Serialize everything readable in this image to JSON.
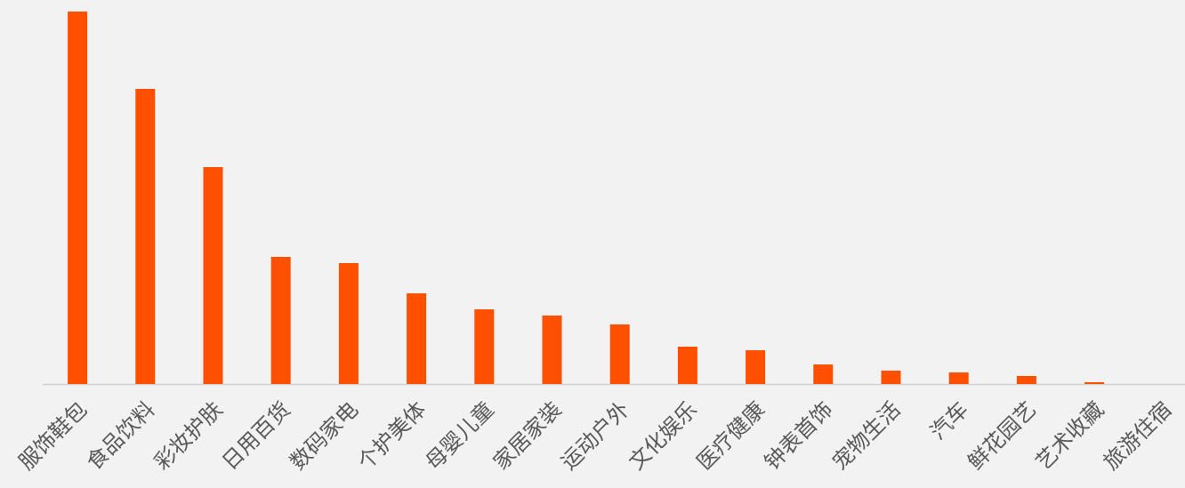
{
  "chart_data": {
    "type": "bar",
    "categories": [
      "服饰鞋包",
      "食品饮料",
      "彩妆护肤",
      "日用百货",
      "数码家电",
      "个护美体",
      "母婴儿童",
      "家居家装",
      "运动户外",
      "文化娱乐",
      "医疗健康",
      "钟表首饰",
      "宠物生活",
      "汽车",
      "鲜花园艺",
      "艺术收藏",
      "旅游住宿"
    ],
    "values": [
      419,
      332,
      244,
      143,
      136,
      102,
      84,
      77,
      67,
      42,
      38,
      22,
      15,
      13,
      9,
      2,
      0
    ],
    "color": "#fe5000",
    "ylim": [
      0,
      420
    ]
  }
}
